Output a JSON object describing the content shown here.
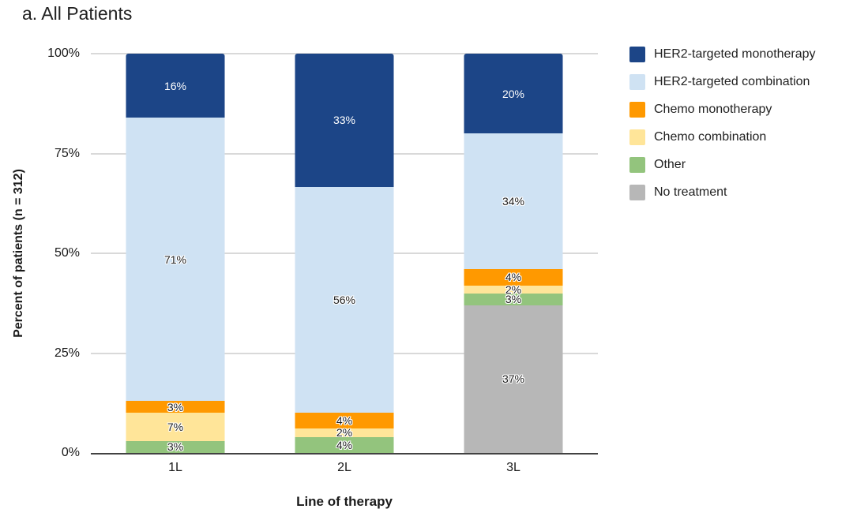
{
  "title": "a. All Patients",
  "chart_data": {
    "type": "bar",
    "stacked": true,
    "title": "a. All Patients",
    "xlabel": "Line of therapy",
    "ylabel": "Percent of patients (n = 312)",
    "categories": [
      "1L",
      "2L",
      "3L"
    ],
    "series": [
      {
        "name": "HER2-targeted monotherapy",
        "color": "#1c4587",
        "text_color": "#ffffff",
        "values": [
          16,
          33,
          20
        ]
      },
      {
        "name": "HER2-targeted combination",
        "color": "#cfe2f3",
        "text_color": "#212121",
        "values": [
          71,
          56,
          34
        ]
      },
      {
        "name": "Chemo monotherapy",
        "color": "#ff9900",
        "text_color": "#212121",
        "values": [
          3,
          4,
          4
        ]
      },
      {
        "name": "Chemo combination",
        "color": "#ffe599",
        "text_color": "#212121",
        "values": [
          7,
          2,
          2
        ]
      },
      {
        "name": "Other",
        "color": "#93c47d",
        "text_color": "#212121",
        "values": [
          3,
          4,
          3
        ]
      },
      {
        "name": "No treatment",
        "color": "#b7b7b7",
        "text_color": "#212121",
        "values": [
          0,
          0,
          37
        ]
      }
    ],
    "stack_order_bottom_to_top": [
      "No treatment",
      "Other",
      "Chemo combination",
      "Chemo monotherapy",
      "HER2-targeted combination",
      "HER2-targeted monotherapy"
    ],
    "label_suffix": "%",
    "y_ticks": [
      "100%",
      "75%",
      "50%",
      "25%",
      "0%"
    ],
    "ylim": [
      0,
      100
    ],
    "grid": true,
    "legend_position": "right",
    "gridline_color": "#d9d9d9",
    "axis_color": "#424242"
  }
}
